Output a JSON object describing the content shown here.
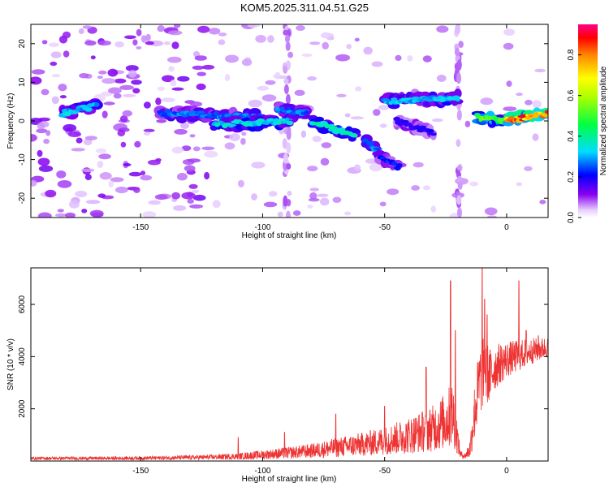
{
  "title": "KOM5.2025.311.04.51.G25",
  "chart_data": [
    {
      "type": "heatmap",
      "name": "spectrogram",
      "xlabel": "Height of straight line (km)",
      "ylabel": "Frequency (Hz)",
      "xlim": [
        -195,
        17
      ],
      "ylim": [
        -25,
        25
      ],
      "xticks": [
        -150,
        -100,
        -50,
        0
      ],
      "yticks": [
        -20,
        -10,
        0,
        10,
        20
      ],
      "colorbar": {
        "label": "Normalized spectral amplitude",
        "range": [
          0,
          0.95
        ],
        "ticks": [
          0.0,
          0.2,
          0.4,
          0.6,
          0.8
        ]
      },
      "ridges": [
        {
          "x": [
            -182,
            -168
          ],
          "y": [
            2,
            4
          ],
          "amp": 0.35
        },
        {
          "x": [
            -142,
            -100
          ],
          "y": [
            2,
            1
          ],
          "amp": 0.3
        },
        {
          "x": [
            -120,
            -88
          ],
          "y": [
            -1,
            0
          ],
          "amp": 0.38
        },
        {
          "x": [
            -94,
            -82
          ],
          "y": [
            3,
            2
          ],
          "amp": 0.3
        },
        {
          "x": [
            -80,
            -62
          ],
          "y": [
            0,
            -4
          ],
          "amp": 0.42
        },
        {
          "x": [
            -58,
            -52
          ],
          "y": [
            -5,
            -8
          ],
          "amp": 0.3
        },
        {
          "x": [
            -52,
            -44
          ],
          "y": [
            -9,
            -12
          ],
          "amp": 0.25
        },
        {
          "x": [
            -50,
            -20
          ],
          "y": [
            5,
            6
          ],
          "amp": 0.35
        },
        {
          "x": [
            -45,
            -30
          ],
          "y": [
            0,
            -3
          ],
          "amp": 0.2
        },
        {
          "x": [
            -12,
            0
          ],
          "y": [
            1,
            0
          ],
          "amp": 0.55
        },
        {
          "x": [
            0,
            17
          ],
          "y": [
            0,
            2
          ],
          "amp": 0.9
        }
      ]
    },
    {
      "type": "line",
      "name": "snr",
      "xlabel": "Height of straight line (km)",
      "ylabel": "SNR (10 * v/v)",
      "xlim": [
        -195,
        17
      ],
      "ylim": [
        0,
        7400
      ],
      "xticks": [
        -150,
        -100,
        -50,
        0
      ],
      "yticks": [
        2000,
        4000,
        6000
      ],
      "color": "#ee3333",
      "envelope": {
        "x": [
          -195,
          -160,
          -140,
          -120,
          -110,
          -100,
          -90,
          -80,
          -70,
          -60,
          -50,
          -40,
          -30,
          -25,
          -22,
          -19,
          -17,
          -15,
          -13,
          -11,
          -9,
          -7,
          -5,
          -3,
          0,
          5,
          10,
          17
        ],
        "base": [
          80,
          80,
          90,
          110,
          130,
          170,
          220,
          280,
          360,
          450,
          550,
          700,
          900,
          1100,
          1300,
          200,
          150,
          300,
          1500,
          2500,
          3000,
          2800,
          3200,
          3400,
          3600,
          3800,
          4000,
          4200
        ],
        "amp": [
          120,
          130,
          150,
          200,
          250,
          350,
          450,
          550,
          750,
          900,
          1100,
          1400,
          1800,
          2200,
          2600,
          300,
          200,
          800,
          2400,
          2800,
          2600,
          2200,
          1800,
          1600,
          1400,
          1200,
          1000,
          800
        ]
      },
      "spikes": [
        {
          "x": -110,
          "y": 900
        },
        {
          "x": -91,
          "y": 1100
        },
        {
          "x": -70,
          "y": 1800
        },
        {
          "x": -50,
          "y": 2100
        },
        {
          "x": -33,
          "y": 3600
        },
        {
          "x": -23,
          "y": 6900
        },
        {
          "x": -21,
          "y": 5000
        },
        {
          "x": -10,
          "y": 7400
        },
        {
          "x": -9,
          "y": 6200
        },
        {
          "x": -8,
          "y": 5600
        },
        {
          "x": 5,
          "y": 6900
        },
        {
          "x": 8,
          "y": 5000
        },
        {
          "x": 13,
          "y": 4800
        }
      ]
    }
  ]
}
